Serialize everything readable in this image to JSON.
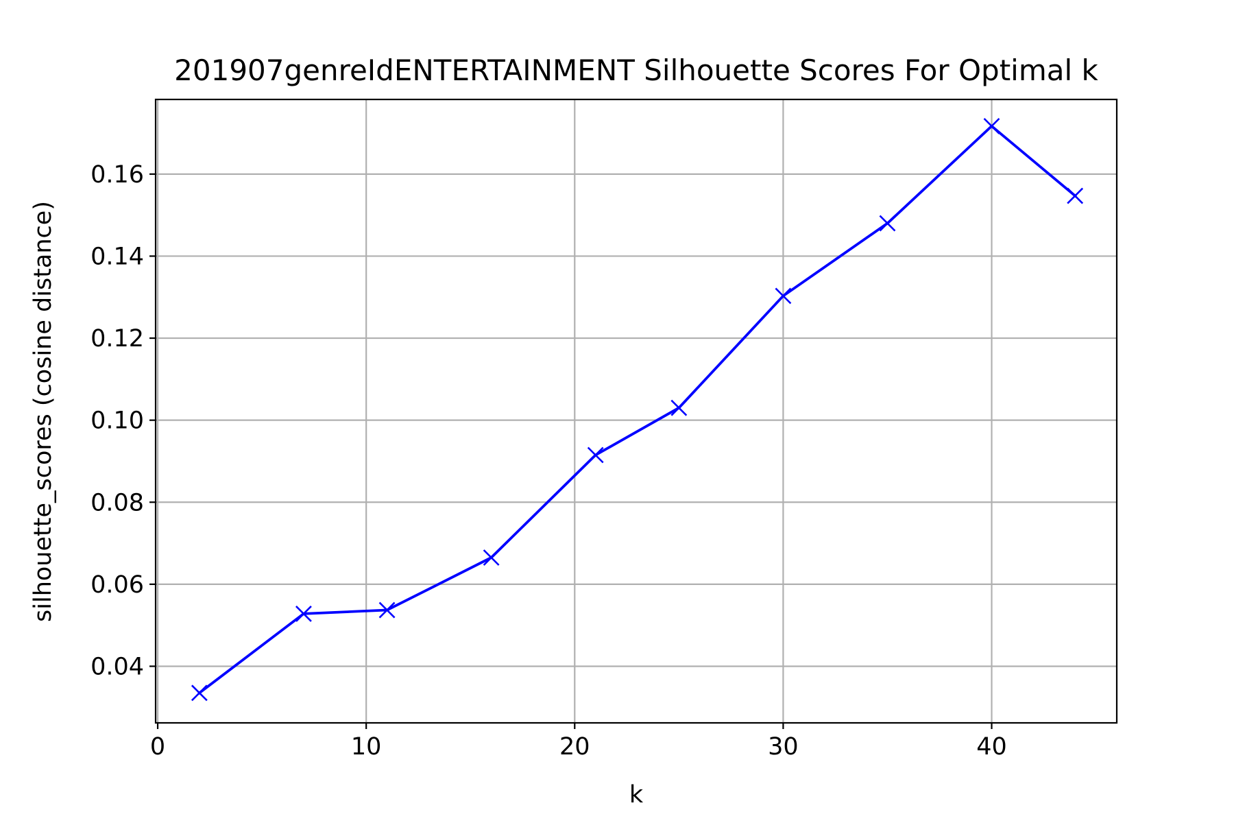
{
  "chart_data": {
    "type": "line",
    "title": "201907genreIdENTERTAINMENT Silhouette Scores For Optimal k",
    "xlabel": "k",
    "ylabel": "silhouette_scores (cosine distance)",
    "xlim": [
      -0.1,
      46
    ],
    "ylim": [
      0.0262,
      0.1782
    ],
    "xticks": [
      0,
      10,
      20,
      30,
      40
    ],
    "xtick_labels": [
      "0",
      "10",
      "20",
      "30",
      "40"
    ],
    "yticks": [
      0.04,
      0.06,
      0.08,
      0.1,
      0.12,
      0.14,
      0.16
    ],
    "ytick_labels": [
      "0.04",
      "0.06",
      "0.08",
      "0.10",
      "0.12",
      "0.14",
      "0.16"
    ],
    "grid": true,
    "series": [
      {
        "color": "#0000ff",
        "marker": "x",
        "x": [
          2,
          7,
          11,
          16,
          21,
          25,
          30,
          35,
          40,
          44
        ],
        "y": [
          0.0335,
          0.0528,
          0.0537,
          0.0665,
          0.0915,
          0.103,
          0.1303,
          0.148,
          0.1717,
          0.1547
        ]
      }
    ]
  }
}
